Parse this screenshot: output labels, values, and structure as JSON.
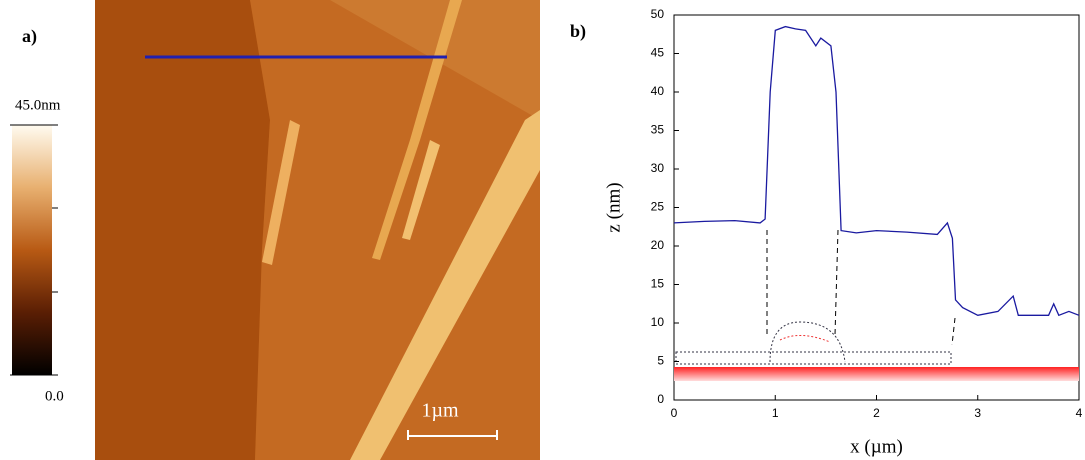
{
  "panel_a": {
    "label": "a)",
    "colorbar_max": "45.0nm",
    "colorbar_min": "0.0",
    "scale_bar": "1µm"
  },
  "chart_data": {
    "type": "line",
    "label": "b)",
    "x_label": "x (µm)",
    "y_label": "z (nm)",
    "xlim": [
      0,
      4
    ],
    "ylim": [
      0,
      50
    ],
    "xticks": [
      0,
      1,
      2,
      3,
      4
    ],
    "yticks": [
      0,
      5,
      10,
      15,
      20,
      25,
      30,
      35,
      40,
      45,
      50
    ],
    "series": [
      {
        "name": "profile",
        "color": "#1a1aa0",
        "x": [
          0,
          0.3,
          0.6,
          0.85,
          0.9,
          0.95,
          1.0,
          1.1,
          1.2,
          1.3,
          1.4,
          1.45,
          1.55,
          1.6,
          1.65,
          1.8,
          2.0,
          2.3,
          2.6,
          2.7,
          2.75,
          2.78,
          2.85,
          3.0,
          3.2,
          3.35,
          3.4,
          3.6,
          3.7,
          3.75,
          3.8,
          3.9,
          4.0
        ],
        "values": [
          23,
          23.2,
          23.3,
          23,
          23.5,
          40,
          48,
          48.5,
          48.2,
          48,
          46,
          47,
          46,
          40,
          22,
          21.7,
          22,
          21.8,
          21.5,
          23,
          21,
          13,
          12,
          11,
          11.5,
          13.5,
          11,
          11,
          11,
          12.5,
          11,
          11.5,
          11
        ]
      }
    ]
  }
}
